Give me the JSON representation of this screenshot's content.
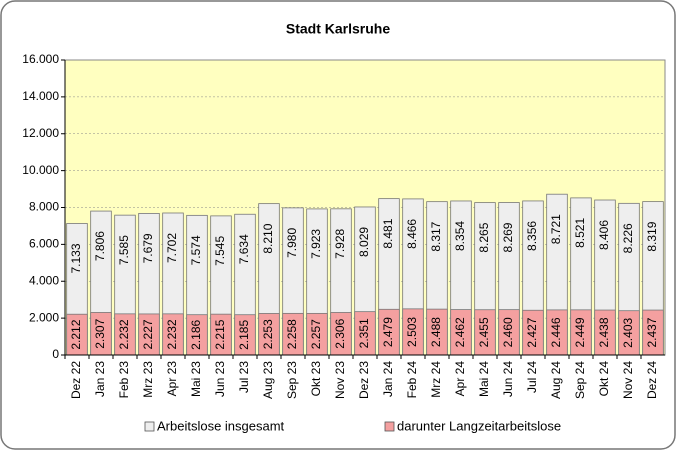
{
  "chart_data": {
    "type": "bar",
    "title": "Stadt Karlsruhe",
    "categories": [
      "Dez 22",
      "Jan 23",
      "Feb 23",
      "Mrz 23",
      "Apr 23",
      "Mai 23",
      "Jun 23",
      "Jul 23",
      "Aug 23",
      "Sep 23",
      "Okt 23",
      "Nov 23",
      "Dez 23",
      "Jan 24",
      "Feb 24",
      "Mrz 24",
      "Apr 24",
      "Mai 24",
      "Jun 24",
      "Jul 24",
      "Aug 24",
      "Sep 24",
      "Okt 24",
      "Nov 24",
      "Dez 24"
    ],
    "series": [
      {
        "name": "Arbeitslose insgesamt",
        "color": "#eeeeee",
        "values": [
          7133,
          7806,
          7585,
          7679,
          7702,
          7574,
          7545,
          7634,
          8210,
          7980,
          7923,
          7928,
          8029,
          8481,
          8466,
          8317,
          8354,
          8265,
          8269,
          8356,
          8721,
          8521,
          8406,
          8226,
          8319
        ],
        "value_labels": [
          "7.133",
          "7.806",
          "7.585",
          "7.679",
          "7.702",
          "7.574",
          "7.545",
          "7.634",
          "8.210",
          "7.980",
          "7.923",
          "7.928",
          "8.029",
          "8.481",
          "8.466",
          "8.317",
          "8.354",
          "8.265",
          "8.269",
          "8.356",
          "8.721",
          "8.521",
          "8.406",
          "8.226",
          "8.319"
        ]
      },
      {
        "name": "darunter Langzeitarbeitslose",
        "color": "#f4a0a0",
        "values": [
          2212,
          2307,
          2232,
          2227,
          2232,
          2186,
          2215,
          2185,
          2253,
          2258,
          2257,
          2306,
          2351,
          2479,
          2503,
          2488,
          2462,
          2455,
          2460,
          2427,
          2446,
          2449,
          2438,
          2403,
          2437
        ],
        "value_labels": [
          "2.212",
          "2.307",
          "2.232",
          "2.227",
          "2.232",
          "2.186",
          "2.215",
          "2.185",
          "2.253",
          "2.258",
          "2.257",
          "2.306",
          "2.351",
          "2.479",
          "2.503",
          "2.488",
          "2.462",
          "2.455",
          "2.460",
          "2.427",
          "2.446",
          "2.449",
          "2.438",
          "2.403",
          "2.437"
        ]
      }
    ],
    "ylim": [
      0,
      16000
    ],
    "yticks": [
      0,
      {
        "value": 2000,
        "label": "2.000"
      },
      {
        "value": 4000,
        "label": "4.000"
      },
      {
        "value": 6000,
        "label": "6.000"
      },
      {
        "value": 8000,
        "label": "8.000"
      },
      {
        "value": 10000,
        "label": "10.000"
      },
      {
        "value": 12000,
        "label": "12.000"
      },
      {
        "value": 14000,
        "label": "14.000"
      },
      {
        "value": 16000,
        "label": "16.000"
      }
    ],
    "grid": true,
    "plot_background": "#ffffc0",
    "legend": "bottom"
  }
}
